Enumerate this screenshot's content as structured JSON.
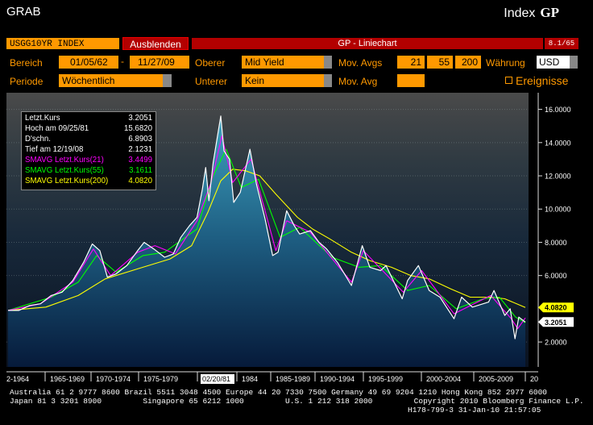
{
  "header": {
    "title": "GRAB",
    "index_label": "Index",
    "gp_label": "GP"
  },
  "toolbar": {
    "ticker": "USGG10YR INDEX",
    "hide_label": "Ausblenden",
    "chart_title": "GP - Liniechart",
    "page": "8.1/65"
  },
  "controls": {
    "range_label": "Bereich",
    "range_from": "01/05/62",
    "range_dash": "-",
    "range_to": "11/27/09",
    "upper_label": "Oberer",
    "upper_value": "Mid Yield",
    "movavgs_label": "Mov. Avgs",
    "ma1": "21",
    "ma2": "55",
    "ma3": "200",
    "currency_label": "Währung",
    "currency_value": "USD",
    "period_label": "Periode",
    "period_value": "Wöchentlich",
    "lower_label": "Unterer",
    "lower_value": "Kein",
    "movavg_label": "Mov. Avg",
    "movavg_value": "",
    "events_label": "Ereignisse"
  },
  "legend": [
    {
      "label": "Letzt.Kurs",
      "value": "3.2051",
      "color": "#ffffff"
    },
    {
      "label": "Hoch am  09/25/81",
      "value": "15.6820",
      "color": "#ffffff"
    },
    {
      "label": "D'schn.",
      "value": "6.8903",
      "color": "#ffffff"
    },
    {
      "label": "Tief am  12/19/08",
      "value": "2.1231",
      "color": "#ffffff"
    },
    {
      "label": "SMAVG Letzt.Kurs(21)",
      "value": "3.4499",
      "color": "#ff00ff"
    },
    {
      "label": "SMAVG Letzt.Kurs(55)",
      "value": "3.1611",
      "color": "#00ff00"
    },
    {
      "label": "SMAVG Letzt.Kurs(200)",
      "value": "4.0820",
      "color": "#ffff00"
    }
  ],
  "chart_data": {
    "type": "line",
    "y_ticks": [
      "16.0000",
      "14.0000",
      "12.0000",
      "10.0000",
      "8.0000",
      "6.0000",
      "2.0000"
    ],
    "ylim": [
      0.5,
      17
    ],
    "x_ticks": [
      "2-1964",
      "1965-1969",
      "1970-1974",
      "1975-1979",
      "02/20/81",
      "1984",
      "1985-1989",
      "1990-1994",
      "1995-1999",
      "2000-2004",
      "2005-2009",
      "20"
    ],
    "end_labels": [
      {
        "value": "4.0820",
        "color": "#ffff00"
      },
      {
        "value": "3.2051",
        "color": "#ffffff"
      }
    ],
    "series": [
      {
        "name": "Letzt.Kurs",
        "color": "#ffffff",
        "x": [
          1962.0,
          1963.0,
          1964.0,
          1965.0,
          1966.0,
          1967.0,
          1968.0,
          1969.0,
          1969.8,
          1970.5,
          1971.2,
          1972.0,
          1973.0,
          1974.0,
          1974.6,
          1975.5,
          1976.5,
          1977.3,
          1978.0,
          1978.8,
          1979.5,
          1980.0,
          1980.3,
          1980.6,
          1981.0,
          1981.7,
          1982.0,
          1982.5,
          1982.9,
          1983.5,
          1984.4,
          1985.0,
          1985.8,
          1986.5,
          1987.0,
          1987.8,
          1988.5,
          1989.0,
          1990.0,
          1990.8,
          1991.5,
          1992.5,
          1993.8,
          1994.8,
          1995.5,
          1996.5,
          1997.0,
          1998.5,
          1999.0,
          2000.0,
          2001.0,
          2002.0,
          2003.3,
          2004.0,
          2005.0,
          2006.5,
          2007.0,
          2008.0,
          2008.5,
          2008.95,
          2009.3,
          2009.9
        ],
        "y": [
          3.9,
          3.9,
          4.2,
          4.3,
          4.8,
          5.0,
          5.7,
          6.8,
          7.9,
          7.5,
          5.9,
          6.1,
          6.6,
          7.5,
          8.0,
          7.6,
          7.1,
          7.3,
          8.3,
          9.0,
          9.5,
          11.2,
          12.5,
          10.5,
          12.8,
          15.6,
          13.5,
          13.0,
          10.4,
          11.0,
          13.6,
          11.5,
          9.4,
          7.2,
          7.4,
          9.9,
          9.0,
          8.5,
          8.7,
          8.0,
          7.6,
          6.8,
          5.4,
          7.8,
          6.5,
          6.3,
          6.6,
          4.6,
          5.7,
          6.6,
          5.1,
          4.7,
          3.4,
          4.7,
          4.1,
          4.4,
          5.1,
          3.6,
          4.0,
          2.2,
          3.5,
          3.2
        ]
      },
      {
        "name": "SMAVG Letzt.Kurs(21)",
        "color": "#ff00ff",
        "x": [
          1962.0,
          1965.0,
          1968.0,
          1969.9,
          1971.5,
          1974.0,
          1975.6,
          1977.5,
          1979.5,
          1980.8,
          1981.8,
          1982.8,
          1984.5,
          1986.8,
          1987.8,
          1990.0,
          1993.8,
          1994.9,
          1998.6,
          2000.3,
          2003.3,
          2006.7,
          2008.6,
          2009.2,
          2009.9
        ],
        "y": [
          3.9,
          4.3,
          5.6,
          7.6,
          6.0,
          7.4,
          7.8,
          7.3,
          9.3,
          11.6,
          14.4,
          11.6,
          13.0,
          7.5,
          9.3,
          8.6,
          5.6,
          7.5,
          5.0,
          6.3,
          3.7,
          4.8,
          3.4,
          2.8,
          3.45
        ]
      },
      {
        "name": "SMAVG Letzt.Kurs(55)",
        "color": "#00ff00",
        "x": [
          1962.0,
          1966.0,
          1968.5,
          1970.2,
          1972.0,
          1974.5,
          1976.5,
          1979.5,
          1981.0,
          1982.2,
          1983.6,
          1985.2,
          1987.2,
          1989.0,
          1992.0,
          1994.5,
          1996.5,
          1999.0,
          2001.0,
          2003.5,
          2006.0,
          2007.5,
          2009.0,
          2009.9
        ],
        "y": [
          3.9,
          4.7,
          5.6,
          7.2,
          6.2,
          7.2,
          7.4,
          8.8,
          12.0,
          13.6,
          11.3,
          11.8,
          8.3,
          8.9,
          7.1,
          6.5,
          6.6,
          5.1,
          5.4,
          4.0,
          4.6,
          4.7,
          3.5,
          3.16
        ]
      },
      {
        "name": "SMAVG Letzt.Kurs(200)",
        "color": "#ffff00",
        "x": [
          1962.0,
          1965.5,
          1968.5,
          1971.0,
          1974.0,
          1977.0,
          1979.0,
          1980.5,
          1981.7,
          1982.8,
          1984.0,
          1985.3,
          1986.8,
          1988.8,
          1990.2,
          1991.8,
          1993.8,
          1995.5,
          1997.5,
          1999.3,
          2001.0,
          2003.0,
          2004.8,
          2006.8,
          2008.0,
          2009.9
        ],
        "y": [
          3.9,
          4.1,
          4.8,
          5.8,
          6.4,
          7.0,
          7.8,
          9.8,
          11.7,
          12.4,
          12.3,
          12.0,
          10.9,
          9.5,
          8.8,
          8.2,
          7.4,
          6.9,
          6.5,
          6.0,
          5.8,
          5.2,
          4.7,
          4.7,
          4.6,
          4.08
        ]
      }
    ]
  },
  "footer": {
    "line1": "Australia 61 2 9777 8600 Brazil 5511 3048 4500 Europe 44 20 7330 7500 Germany 49 69 9204 1210 Hong Kong 852 2977 6000",
    "line2": "Japan 81 3 3201 8900         Singapore 65 6212 1000         U.S. 1 212 318 2000         Copyright 2010 Bloomberg Finance L.P.",
    "line3": "H178-799-3 31-Jan-10 21:57:05"
  }
}
